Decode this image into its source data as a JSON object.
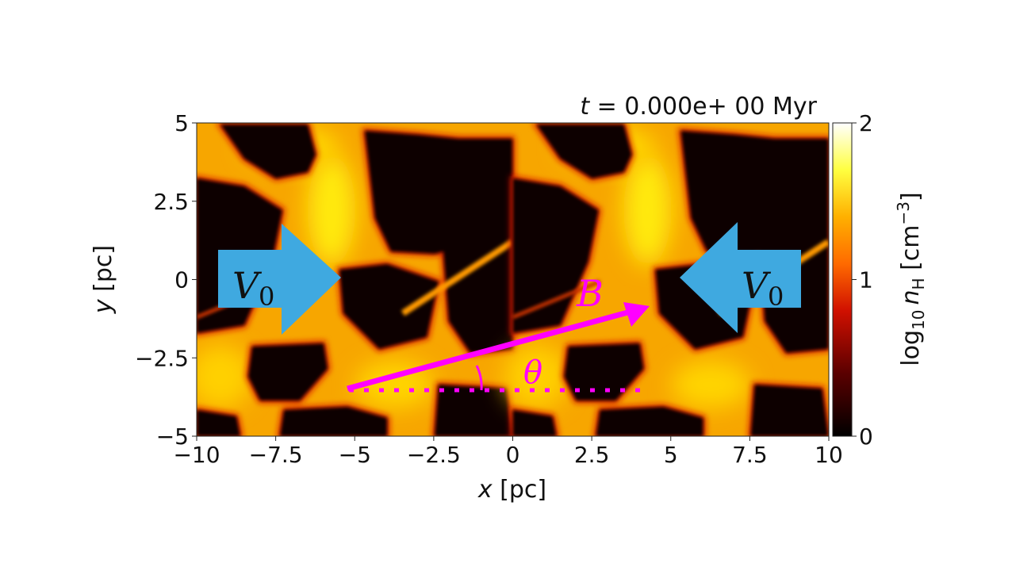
{
  "chart_data": {
    "type": "heatmap",
    "title": "t = 0.000e+ 00 Myr",
    "title_parts": {
      "var": "t",
      "rest": " =  0.000e+ 00 Myr"
    },
    "xlabel": {
      "var": "x",
      "unit": " [pc]"
    },
    "ylabel": {
      "var": "y",
      "unit": " [pc]"
    },
    "xlim": [
      -10,
      10
    ],
    "ylim": [
      -5,
      5
    ],
    "xticks": [
      -10,
      -7.5,
      -5,
      -2.5,
      0,
      2.5,
      5,
      7.5,
      10
    ],
    "xtick_labels": [
      "−10",
      "−7.5",
      "−5",
      "−2.5",
      "0",
      "2.5",
      "5",
      "7.5",
      "10"
    ],
    "yticks": [
      5,
      2.5,
      0,
      -2.5,
      -5
    ],
    "ytick_labels": [
      "5",
      "2.5",
      "0",
      "−2.5",
      "−5"
    ],
    "colorbar": {
      "label": "log10 nH [cm−3]",
      "label_parts": {
        "log": "log",
        "log_sub": "10",
        "n": "n",
        "n_sub": "H",
        "unit": " [cm",
        "unit_sup": "−3",
        "close": "]"
      },
      "range": [
        0,
        2
      ],
      "ticks": [
        0,
        1,
        2
      ],
      "tick_labels": [
        "0",
        "1",
        "2"
      ],
      "colormap": "afmhot",
      "colors": [
        "#000000",
        "#5a0000",
        "#d01000",
        "#ff6a00",
        "#ffb000",
        "#ffff40",
        "#ffffff"
      ]
    },
    "periodic_in_x_pc": 10,
    "annotations": {
      "velocity_left": {
        "label": "V",
        "sub": "0",
        "direction": "right",
        "color": "#3fa9e0"
      },
      "velocity_right": {
        "label": "V",
        "sub": "0",
        "direction": "left",
        "color": "#3fa9e0"
      },
      "field": {
        "label": "B",
        "color": "#ff00ff",
        "from": [
          -5.2,
          -3.5
        ],
        "to": [
          4.4,
          -0.85
        ]
      },
      "angle": {
        "label": "θ",
        "color": "#ff00ff"
      }
    }
  }
}
